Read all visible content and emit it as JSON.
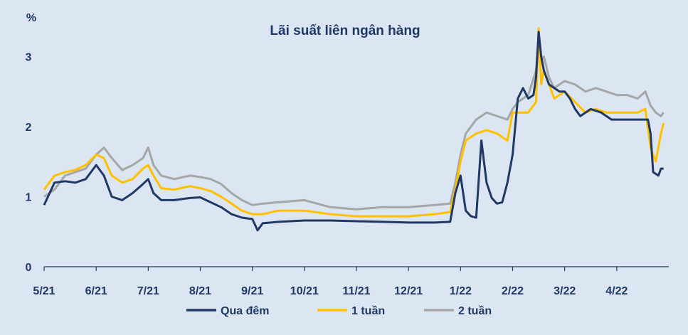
{
  "chart_data": {
    "type": "line",
    "title": "Lãi suất liên ngân hàng",
    "ylabel": "%",
    "xlabel": "",
    "ylim": [
      0,
      3.4
    ],
    "y_ticks": [
      "0",
      "1",
      "2",
      "3"
    ],
    "x_ticks": [
      "5/21",
      "6/21",
      "7/21",
      "8/21",
      "9/21",
      "10/21",
      "11/21",
      "12/21",
      "1/22",
      "2/22",
      "3/22",
      "4/22"
    ],
    "x_range_months": [
      0,
      12
    ],
    "grid": false,
    "legend_position": "bottom",
    "series": [
      {
        "name": "Qua đêm",
        "color": "#1f3864",
        "points": [
          [
            0.0,
            0.88
          ],
          [
            0.2,
            1.2
          ],
          [
            0.4,
            1.22
          ],
          [
            0.6,
            1.2
          ],
          [
            0.8,
            1.25
          ],
          [
            1.0,
            1.45
          ],
          [
            1.15,
            1.3
          ],
          [
            1.3,
            1.0
          ],
          [
            1.5,
            0.95
          ],
          [
            1.7,
            1.05
          ],
          [
            1.9,
            1.18
          ],
          [
            2.0,
            1.25
          ],
          [
            2.1,
            1.05
          ],
          [
            2.25,
            0.95
          ],
          [
            2.5,
            0.95
          ],
          [
            2.8,
            0.98
          ],
          [
            3.0,
            0.99
          ],
          [
            3.2,
            0.92
          ],
          [
            3.4,
            0.85
          ],
          [
            3.6,
            0.75
          ],
          [
            3.8,
            0.7
          ],
          [
            4.0,
            0.68
          ],
          [
            4.1,
            0.52
          ],
          [
            4.2,
            0.62
          ],
          [
            4.5,
            0.64
          ],
          [
            5.0,
            0.66
          ],
          [
            5.5,
            0.66
          ],
          [
            6.0,
            0.65
          ],
          [
            6.5,
            0.64
          ],
          [
            7.0,
            0.63
          ],
          [
            7.5,
            0.63
          ],
          [
            7.8,
            0.64
          ],
          [
            7.9,
            1.05
          ],
          [
            8.0,
            1.3
          ],
          [
            8.1,
            0.8
          ],
          [
            8.2,
            0.72
          ],
          [
            8.3,
            0.7
          ],
          [
            8.4,
            1.8
          ],
          [
            8.5,
            1.2
          ],
          [
            8.6,
            0.98
          ],
          [
            8.7,
            0.9
          ],
          [
            8.8,
            0.92
          ],
          [
            8.9,
            1.2
          ],
          [
            9.0,
            1.6
          ],
          [
            9.1,
            2.4
          ],
          [
            9.2,
            2.55
          ],
          [
            9.3,
            2.4
          ],
          [
            9.4,
            2.45
          ],
          [
            9.45,
            2.7
          ],
          [
            9.5,
            3.35
          ],
          [
            9.55,
            3.0
          ],
          [
            9.6,
            2.8
          ],
          [
            9.7,
            2.6
          ],
          [
            9.8,
            2.55
          ],
          [
            9.9,
            2.5
          ],
          [
            10.0,
            2.5
          ],
          [
            10.1,
            2.4
          ],
          [
            10.2,
            2.25
          ],
          [
            10.3,
            2.15
          ],
          [
            10.5,
            2.25
          ],
          [
            10.7,
            2.2
          ],
          [
            10.9,
            2.1
          ],
          [
            11.0,
            2.1
          ],
          [
            11.2,
            2.1
          ],
          [
            11.4,
            2.1
          ],
          [
            11.6,
            2.1
          ],
          [
            11.65,
            1.9
          ],
          [
            11.7,
            1.35
          ],
          [
            11.8,
            1.3
          ],
          [
            11.85,
            1.4
          ],
          [
            11.9,
            1.4
          ]
        ]
      },
      {
        "name": "1 tuần",
        "color": "#ffc000",
        "points": [
          [
            0.0,
            1.1
          ],
          [
            0.2,
            1.3
          ],
          [
            0.4,
            1.35
          ],
          [
            0.6,
            1.38
          ],
          [
            0.8,
            1.45
          ],
          [
            1.0,
            1.6
          ],
          [
            1.15,
            1.55
          ],
          [
            1.3,
            1.3
          ],
          [
            1.5,
            1.2
          ],
          [
            1.7,
            1.25
          ],
          [
            1.9,
            1.4
          ],
          [
            2.0,
            1.45
          ],
          [
            2.1,
            1.3
          ],
          [
            2.25,
            1.12
          ],
          [
            2.5,
            1.1
          ],
          [
            2.8,
            1.15
          ],
          [
            3.0,
            1.12
          ],
          [
            3.2,
            1.08
          ],
          [
            3.4,
            1.0
          ],
          [
            3.6,
            0.9
          ],
          [
            3.8,
            0.8
          ],
          [
            4.0,
            0.75
          ],
          [
            4.2,
            0.75
          ],
          [
            4.5,
            0.8
          ],
          [
            5.0,
            0.8
          ],
          [
            5.5,
            0.75
          ],
          [
            6.0,
            0.72
          ],
          [
            6.5,
            0.72
          ],
          [
            7.0,
            0.72
          ],
          [
            7.5,
            0.75
          ],
          [
            7.8,
            0.78
          ],
          [
            7.9,
            1.1
          ],
          [
            8.0,
            1.5
          ],
          [
            8.1,
            1.8
          ],
          [
            8.3,
            1.9
          ],
          [
            8.5,
            1.95
          ],
          [
            8.7,
            1.9
          ],
          [
            8.9,
            1.8
          ],
          [
            9.0,
            2.2
          ],
          [
            9.1,
            2.2
          ],
          [
            9.3,
            2.2
          ],
          [
            9.45,
            2.35
          ],
          [
            9.5,
            3.4
          ],
          [
            9.55,
            2.6
          ],
          [
            9.6,
            2.8
          ],
          [
            9.7,
            2.6
          ],
          [
            9.8,
            2.4
          ],
          [
            9.9,
            2.45
          ],
          [
            10.0,
            2.5
          ],
          [
            10.2,
            2.35
          ],
          [
            10.4,
            2.2
          ],
          [
            10.6,
            2.25
          ],
          [
            10.8,
            2.2
          ],
          [
            11.0,
            2.2
          ],
          [
            11.2,
            2.2
          ],
          [
            11.4,
            2.2
          ],
          [
            11.55,
            2.25
          ],
          [
            11.65,
            1.7
          ],
          [
            11.75,
            1.5
          ],
          [
            11.85,
            1.9
          ],
          [
            11.9,
            2.05
          ]
        ]
      },
      {
        "name": "2 tuần",
        "color": "#a6a6a6",
        "points": [
          [
            0.0,
            1.0
          ],
          [
            0.2,
            1.1
          ],
          [
            0.4,
            1.3
          ],
          [
            0.6,
            1.35
          ],
          [
            0.8,
            1.4
          ],
          [
            1.0,
            1.6
          ],
          [
            1.15,
            1.7
          ],
          [
            1.3,
            1.55
          ],
          [
            1.5,
            1.38
          ],
          [
            1.7,
            1.45
          ],
          [
            1.9,
            1.55
          ],
          [
            2.0,
            1.7
          ],
          [
            2.1,
            1.45
          ],
          [
            2.25,
            1.3
          ],
          [
            2.5,
            1.25
          ],
          [
            2.8,
            1.3
          ],
          [
            3.0,
            1.28
          ],
          [
            3.2,
            1.25
          ],
          [
            3.4,
            1.18
          ],
          [
            3.6,
            1.05
          ],
          [
            3.8,
            0.95
          ],
          [
            4.0,
            0.88
          ],
          [
            4.2,
            0.9
          ],
          [
            4.5,
            0.92
          ],
          [
            5.0,
            0.95
          ],
          [
            5.5,
            0.85
          ],
          [
            6.0,
            0.82
          ],
          [
            6.5,
            0.85
          ],
          [
            7.0,
            0.85
          ],
          [
            7.5,
            0.88
          ],
          [
            7.8,
            0.9
          ],
          [
            7.9,
            1.2
          ],
          [
            8.0,
            1.6
          ],
          [
            8.1,
            1.9
          ],
          [
            8.3,
            2.1
          ],
          [
            8.5,
            2.2
          ],
          [
            8.7,
            2.15
          ],
          [
            8.9,
            2.1
          ],
          [
            9.0,
            2.25
          ],
          [
            9.1,
            2.35
          ],
          [
            9.3,
            2.45
          ],
          [
            9.45,
            2.8
          ],
          [
            9.5,
            3.3
          ],
          [
            9.55,
            2.95
          ],
          [
            9.6,
            3.0
          ],
          [
            9.7,
            2.7
          ],
          [
            9.8,
            2.55
          ],
          [
            9.9,
            2.6
          ],
          [
            10.0,
            2.65
          ],
          [
            10.2,
            2.6
          ],
          [
            10.4,
            2.5
          ],
          [
            10.6,
            2.55
          ],
          [
            10.8,
            2.5
          ],
          [
            11.0,
            2.45
          ],
          [
            11.2,
            2.45
          ],
          [
            11.4,
            2.4
          ],
          [
            11.55,
            2.5
          ],
          [
            11.65,
            2.3
          ],
          [
            11.75,
            2.2
          ],
          [
            11.85,
            2.15
          ],
          [
            11.9,
            2.2
          ]
        ]
      }
    ]
  }
}
